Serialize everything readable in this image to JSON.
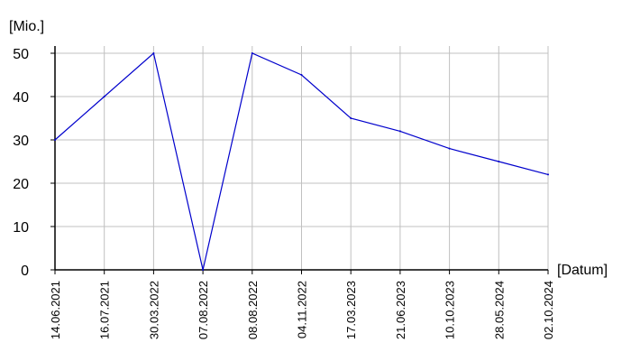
{
  "chart_data": {
    "type": "line",
    "title": "",
    "ylabel": "[Mio.]",
    "xlabel": "[Datum]",
    "ylim": [
      0,
      50
    ],
    "yticks": [
      0,
      10,
      20,
      30,
      40,
      50
    ],
    "grid": true,
    "categories": [
      "14.06.2021",
      "16.07.2021",
      "30.03.2022",
      "07.08.2022",
      "08.08.2022",
      "04.11.2022",
      "17.03.2023",
      "21.06.2023",
      "10.10.2023",
      "28.05.2024",
      "02.10.2024"
    ],
    "series": [
      {
        "values": [
          30,
          40,
          50,
          0,
          50,
          45,
          35,
          32,
          28,
          25,
          22
        ],
        "color": "#0000cc"
      }
    ],
    "colors": {
      "grid": "#c0c0c0",
      "axis": "#000000"
    }
  }
}
